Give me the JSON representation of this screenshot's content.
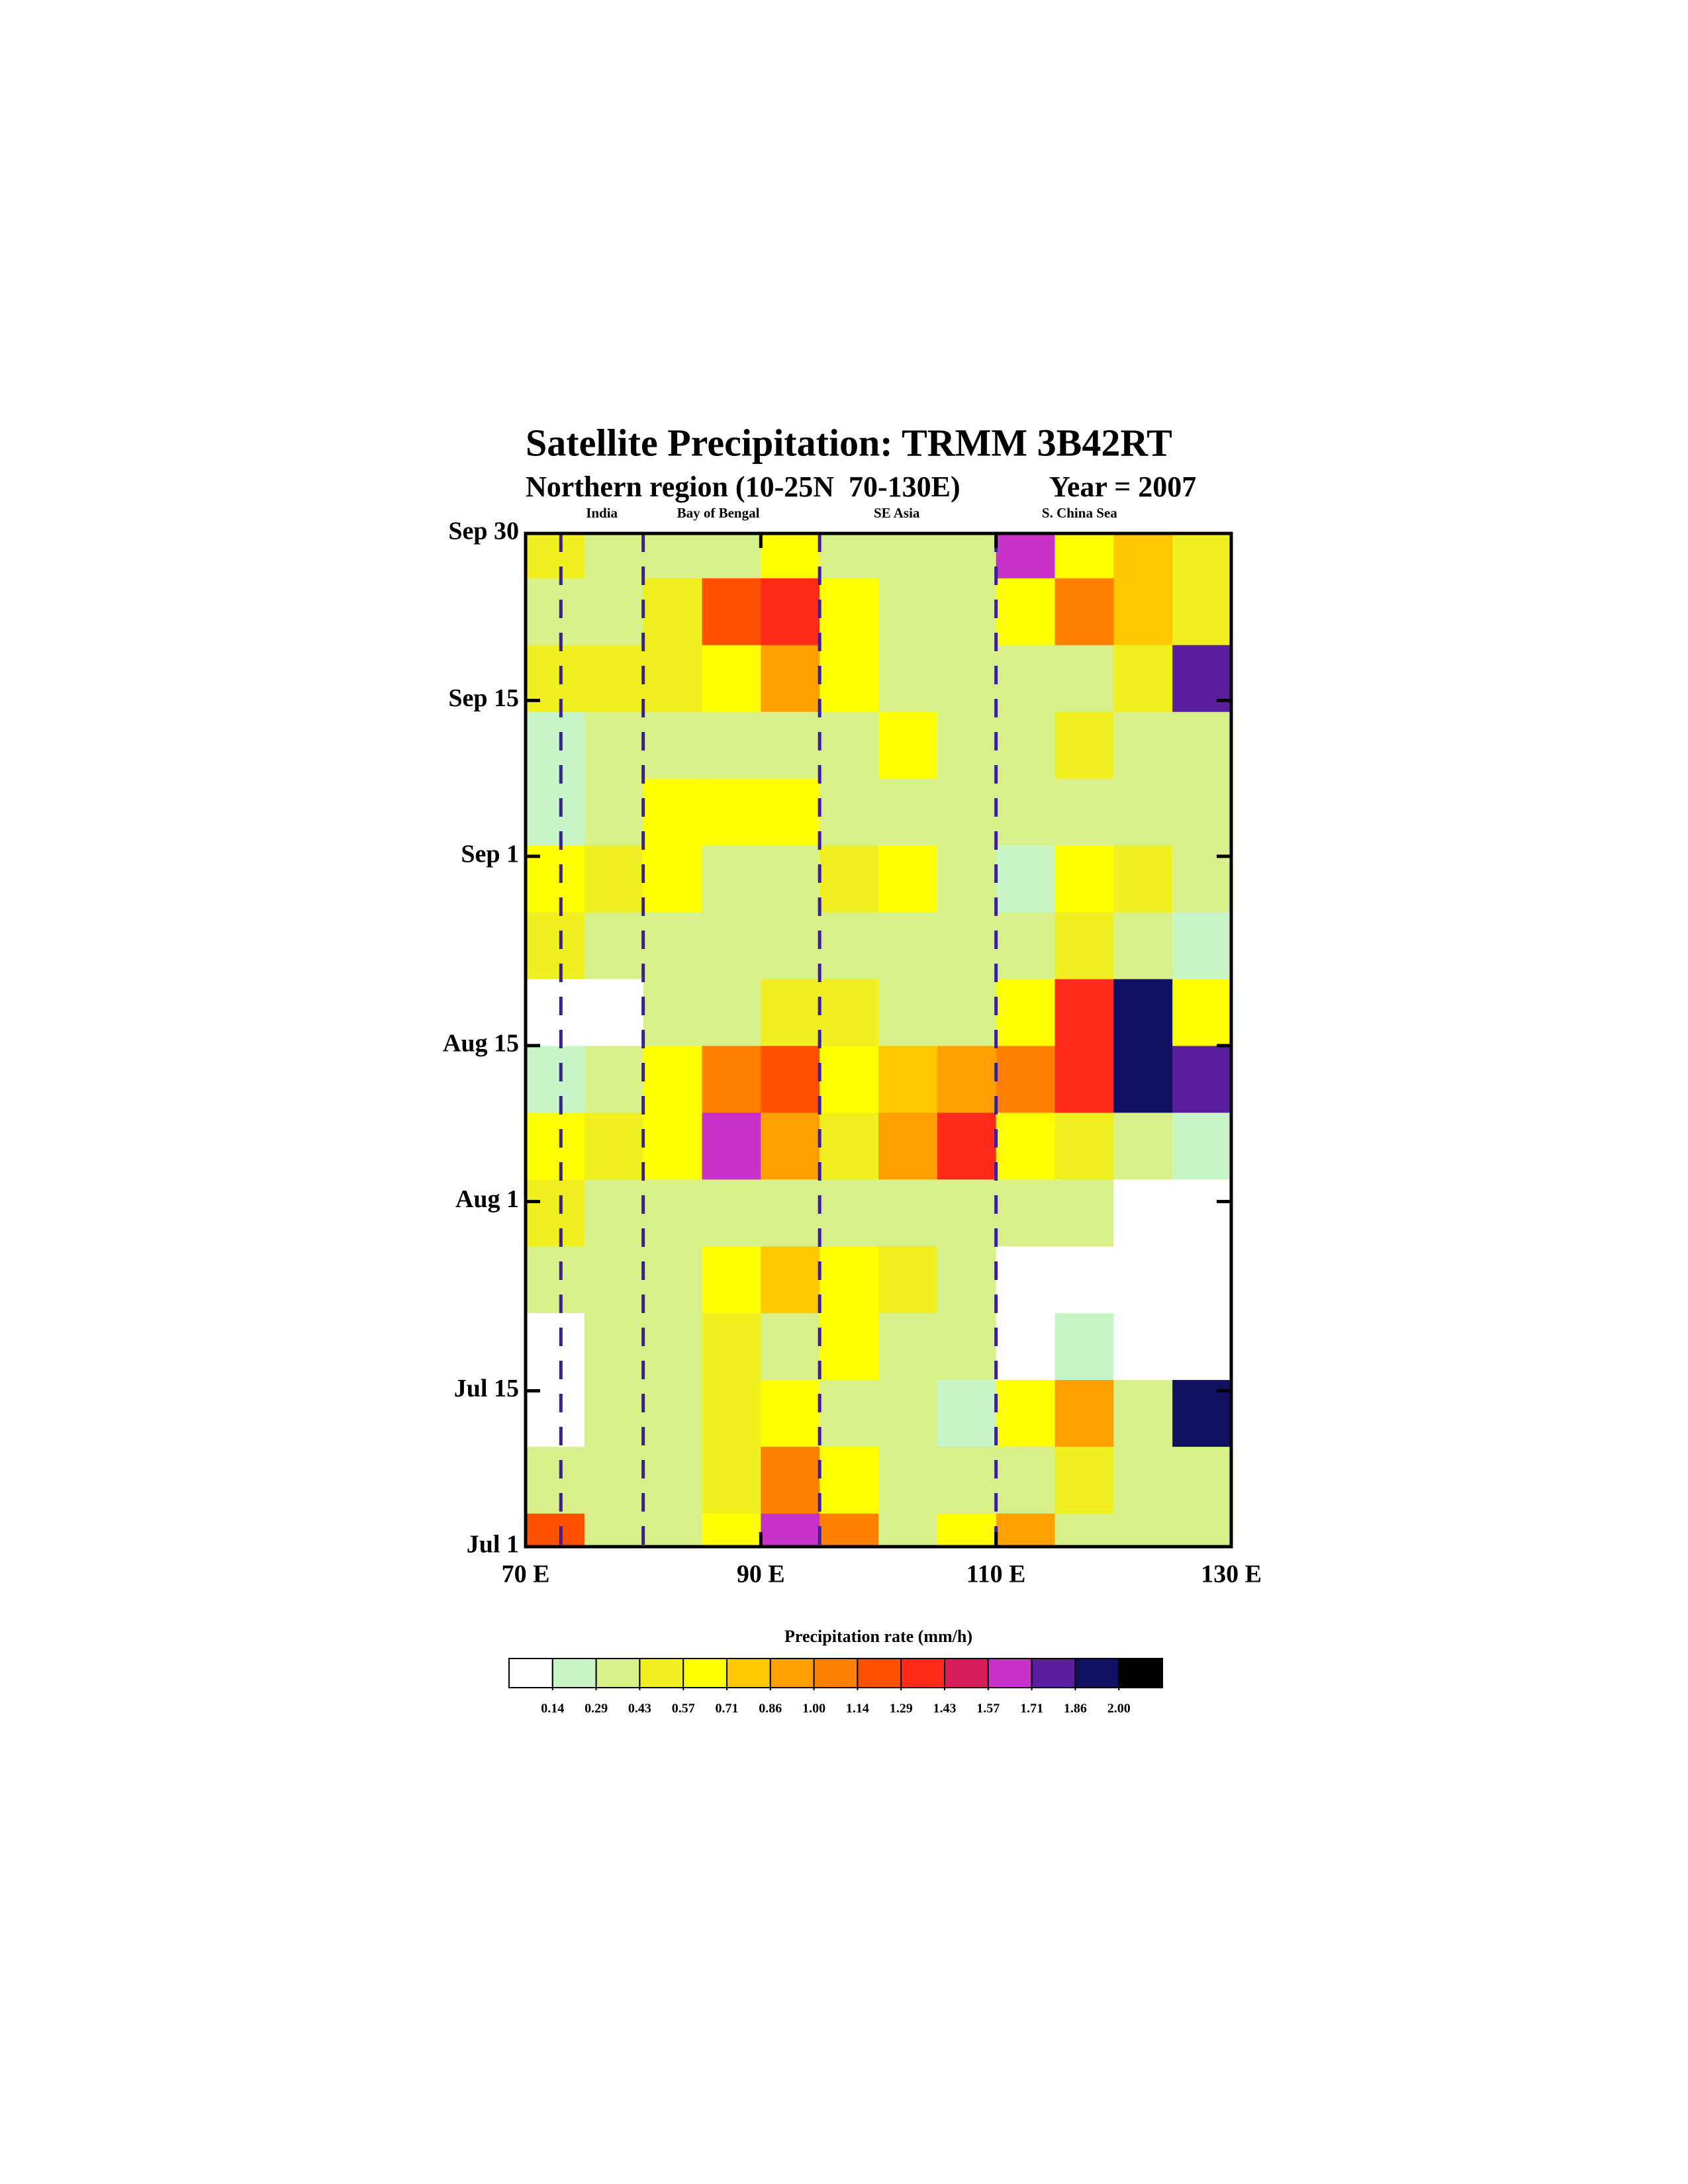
{
  "chart_data": {
    "type": "heatmap",
    "title": "Satellite Precipitation: TRMM 3B42RT",
    "subtitle": "Northern region (10-25N  70-130E)",
    "subtitle_right": "Year = 2007",
    "regions": [
      "India",
      "Bay of Bengal",
      "SE Asia",
      "S. China Sea"
    ],
    "region_lines": [
      73,
      80,
      95,
      110
    ],
    "xlim": [
      70,
      130
    ],
    "xticks": [
      {
        "value": 70,
        "label": "70 E"
      },
      {
        "value": 90,
        "label": "90 E"
      },
      {
        "value": 110,
        "label": "110 E"
      },
      {
        "value": 130,
        "label": "130 E"
      }
    ],
    "ylim": [
      0,
      91
    ],
    "yticks": [
      {
        "value": 0,
        "label": "Jul 1"
      },
      {
        "value": 14,
        "label": "Jul 15"
      },
      {
        "value": 31,
        "label": "Aug 1"
      },
      {
        "value": 45,
        "label": "Aug 15"
      },
      {
        "value": 62,
        "label": "Sep 1"
      },
      {
        "value": 76,
        "label": "Sep 15"
      },
      {
        "value": 91,
        "label": "Sep 30"
      }
    ],
    "x": [
      72.5,
      77.5,
      82.5,
      87.5,
      92.5,
      97.5,
      102.5,
      107.5,
      112.5,
      117.5,
      122.5,
      127.5
    ],
    "y": [
      0,
      6,
      12,
      18,
      24,
      30,
      36,
      42,
      48,
      54,
      60,
      66,
      72,
      78,
      84,
      90
    ],
    "z": [
      [
        1.2,
        0.3,
        0.3,
        0.6,
        1.6,
        1.0,
        0.4,
        0.7,
        0.9,
        0.4,
        0.3,
        0.3
      ],
      [
        0.3,
        0.3,
        0.3,
        0.5,
        1.1,
        0.6,
        0.3,
        0.3,
        0.3,
        0.5,
        0.3,
        0.4
      ],
      [
        0.1,
        0.3,
        0.4,
        0.5,
        0.6,
        0.4,
        0.3,
        0.2,
        0.7,
        0.9,
        0.3,
        1.9
      ],
      [
        0.1,
        0.3,
        0.4,
        0.5,
        0.4,
        0.6,
        0.4,
        0.3,
        0.1,
        0.2,
        0.1,
        0.1
      ],
      [
        0.4,
        0.3,
        0.3,
        0.7,
        0.8,
        0.6,
        0.5,
        0.3,
        0.1,
        0.1,
        0.1,
        0.1
      ],
      [
        0.5,
        0.4,
        0.3,
        0.3,
        0.3,
        0.4,
        0.4,
        0.3,
        0.4,
        0.3,
        0.1,
        0.1
      ],
      [
        0.7,
        0.5,
        0.6,
        1.7,
        0.9,
        0.5,
        0.9,
        1.4,
        0.7,
        0.5,
        0.3,
        0.2
      ],
      [
        0.2,
        0.3,
        0.6,
        1.0,
        1.2,
        0.7,
        0.8,
        0.9,
        1.0,
        1.4,
        1.9,
        1.8
      ],
      [
        0.1,
        0.1,
        0.3,
        0.4,
        0.5,
        0.5,
        0.3,
        0.4,
        0.6,
        1.3,
        1.9,
        0.6
      ],
      [
        0.5,
        0.4,
        0.3,
        0.3,
        0.3,
        0.4,
        0.4,
        0.3,
        0.3,
        0.5,
        0.3,
        0.2
      ],
      [
        0.6,
        0.5,
        0.6,
        0.4,
        0.4,
        0.5,
        0.6,
        0.3,
        0.2,
        0.6,
        0.5,
        0.4
      ],
      [
        0.2,
        0.4,
        0.6,
        0.6,
        0.7,
        0.3,
        0.3,
        0.3,
        0.3,
        0.3,
        0.3,
        0.3
      ],
      [
        0.2,
        0.3,
        0.3,
        0.4,
        0.4,
        0.3,
        0.7,
        0.4,
        0.3,
        0.5,
        0.3,
        0.3
      ],
      [
        0.5,
        0.5,
        0.5,
        0.7,
        0.9,
        0.6,
        0.4,
        0.3,
        0.3,
        0.4,
        0.5,
        1.8
      ],
      [
        0.4,
        0.3,
        0.5,
        1.2,
        1.3,
        0.6,
        0.3,
        0.3,
        0.7,
        1.0,
        0.8,
        0.5
      ],
      [
        0.5,
        0.3,
        0.3,
        0.4,
        0.6,
        0.3,
        0.3,
        0.3,
        1.6,
        0.6,
        0.8,
        0.5
      ]
    ],
    "colorbar_title": "Precipitation rate (mm/h)",
    "levels": [
      0.14,
      0.29,
      0.43,
      0.57,
      0.71,
      0.86,
      {
        "value": 1,
        "label": "1.00"
      },
      1.14,
      1.29,
      1.43,
      1.57,
      1.71,
      1.86,
      {
        "value": 2,
        "label": "2.00"
      }
    ],
    "colors": [
      "#ffffff",
      "#c8f5c8",
      "#d8f08a",
      "#f0f020",
      "#ffff00",
      "#ffc800",
      "#ffa000",
      "#ff8000",
      "#ff5000",
      "#ff2a1a",
      "#d81e5a",
      "#c832c8",
      "#5a1e9e",
      "#101060",
      "#000000"
    ]
  }
}
